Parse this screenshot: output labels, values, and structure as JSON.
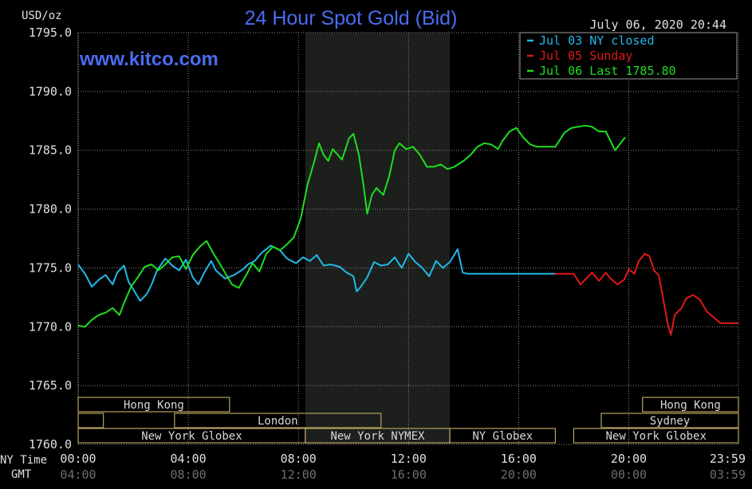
{
  "header": {
    "unit": "USD/oz",
    "title": "24 Hour Spot Gold (Bid)",
    "timestamp": "July 06, 2020 20:44",
    "watermark": "www.kitco.com"
  },
  "chart_data": {
    "type": "line",
    "title": "24 Hour Spot Gold (Bid)",
    "ylabel": "USD/oz",
    "ylim": [
      1760,
      1795
    ],
    "xlim": [
      0,
      1439
    ],
    "grid": true,
    "legend_position": "top-right",
    "y_ticks": [
      {
        "value": 1795,
        "label": "1795.0"
      },
      {
        "value": 1790,
        "label": "1790.0"
      },
      {
        "value": 1785,
        "label": "1785.0"
      },
      {
        "value": 1780,
        "label": "1780.0"
      },
      {
        "value": 1775,
        "label": "1775.0"
      },
      {
        "value": 1770,
        "label": "1770.0"
      },
      {
        "value": 1765,
        "label": "1765.0"
      },
      {
        "value": 1760,
        "label": "1760.0"
      }
    ],
    "x_axis_labels": {
      "ny": "NY Time",
      "gmt": "GMT"
    },
    "x_ticks": [
      {
        "x": 0,
        "ny": "00:00",
        "gmt": "04:00"
      },
      {
        "x": 240,
        "ny": "04:00",
        "gmt": "08:00"
      },
      {
        "x": 480,
        "ny": "08:00",
        "gmt": "12:00"
      },
      {
        "x": 720,
        "ny": "12:00",
        "gmt": "16:00"
      },
      {
        "x": 960,
        "ny": "16:00",
        "gmt": "20:00"
      },
      {
        "x": 1200,
        "ny": "20:00",
        "gmt": "00:00"
      },
      {
        "x": 1439,
        "ny": "23:59",
        "gmt": "03:59"
      }
    ],
    "shaded_range": [
      495,
      810
    ],
    "sessions": [
      {
        "label": "Hong Kong",
        "start": 0,
        "end": 330,
        "row": 0
      },
      {
        "label": "",
        "start": 0,
        "end": 55,
        "row": 1
      },
      {
        "label": "London",
        "start": 210,
        "end": 660,
        "row": 1
      },
      {
        "label": "New York Globex",
        "start": 0,
        "end": 495,
        "row": 2
      },
      {
        "label": "New York NYMEX",
        "start": 495,
        "end": 810,
        "row": 2
      },
      {
        "label": "NY Globex",
        "start": 810,
        "end": 1040,
        "row": 2
      },
      {
        "label": "Hong Kong",
        "start": 1230,
        "end": 1439,
        "row": 0
      },
      {
        "label": "Sydney",
        "start": 1140,
        "end": 1439,
        "row": 1
      },
      {
        "label": "New York Globex",
        "start": 1080,
        "end": 1439,
        "row": 2
      }
    ],
    "series": [
      {
        "name": "Jul 03 NY closed",
        "color": "#22b8e8",
        "points": [
          [
            0,
            1775.3
          ],
          [
            15,
            1774.5
          ],
          [
            30,
            1773.4
          ],
          [
            45,
            1774.0
          ],
          [
            60,
            1774.4
          ],
          [
            75,
            1773.6
          ],
          [
            85,
            1774.6
          ],
          [
            100,
            1775.2
          ],
          [
            110,
            1773.8
          ],
          [
            120,
            1773.2
          ],
          [
            135,
            1772.2
          ],
          [
            150,
            1772.8
          ],
          [
            160,
            1773.6
          ],
          [
            172,
            1774.8
          ],
          [
            190,
            1775.8
          ],
          [
            205,
            1775.2
          ],
          [
            220,
            1774.8
          ],
          [
            235,
            1775.7
          ],
          [
            250,
            1774.2
          ],
          [
            262,
            1773.6
          ],
          [
            275,
            1774.6
          ],
          [
            290,
            1775.6
          ],
          [
            300,
            1774.8
          ],
          [
            320,
            1774.1
          ],
          [
            340,
            1774.4
          ],
          [
            360,
            1774.9
          ],
          [
            370,
            1775.3
          ],
          [
            385,
            1775.6
          ],
          [
            400,
            1776.3
          ],
          [
            420,
            1776.9
          ],
          [
            440,
            1776.5
          ],
          [
            455,
            1775.8
          ],
          [
            475,
            1775.4
          ],
          [
            490,
            1775.9
          ],
          [
            505,
            1775.6
          ],
          [
            520,
            1776.1
          ],
          [
            535,
            1775.2
          ],
          [
            550,
            1775.3
          ],
          [
            570,
            1775.1
          ],
          [
            585,
            1774.6
          ],
          [
            600,
            1774.3
          ],
          [
            607,
            1773.0
          ],
          [
            616,
            1773.4
          ],
          [
            630,
            1774.2
          ],
          [
            645,
            1775.5
          ],
          [
            660,
            1775.2
          ],
          [
            675,
            1775.3
          ],
          [
            690,
            1775.9
          ],
          [
            705,
            1775.0
          ],
          [
            720,
            1776.2
          ],
          [
            735,
            1775.5
          ],
          [
            750,
            1775.0
          ],
          [
            765,
            1774.3
          ],
          [
            780,
            1775.6
          ],
          [
            795,
            1775.0
          ],
          [
            810,
            1775.5
          ],
          [
            827,
            1776.6
          ],
          [
            838,
            1774.6
          ],
          [
            850,
            1774.5
          ],
          [
            1040,
            1774.5
          ]
        ]
      },
      {
        "name": "Jul 05 Sunday",
        "color": "#e01818",
        "points": [
          [
            1040,
            1774.5
          ],
          [
            1080,
            1774.5
          ],
          [
            1095,
            1773.6
          ],
          [
            1110,
            1774.2
          ],
          [
            1120,
            1774.6
          ],
          [
            1135,
            1773.9
          ],
          [
            1150,
            1774.6
          ],
          [
            1160,
            1774.1
          ],
          [
            1175,
            1773.6
          ],
          [
            1190,
            1774.0
          ],
          [
            1200,
            1774.9
          ],
          [
            1212,
            1774.5
          ],
          [
            1222,
            1775.6
          ],
          [
            1235,
            1776.2
          ],
          [
            1245,
            1776.0
          ],
          [
            1255,
            1774.8
          ],
          [
            1265,
            1774.4
          ],
          [
            1275,
            1772.4
          ],
          [
            1285,
            1770.2
          ],
          [
            1292,
            1769.3
          ],
          [
            1300,
            1771.0
          ],
          [
            1315,
            1771.6
          ],
          [
            1325,
            1772.4
          ],
          [
            1340,
            1772.7
          ],
          [
            1355,
            1772.3
          ],
          [
            1370,
            1771.3
          ],
          [
            1385,
            1770.8
          ],
          [
            1400,
            1770.3
          ],
          [
            1439,
            1770.3
          ]
        ]
      },
      {
        "name": "Jul 06 Last 1785.80",
        "color": "#1ede1e",
        "points": [
          [
            0,
            1770.1
          ],
          [
            15,
            1770.0
          ],
          [
            30,
            1770.6
          ],
          [
            45,
            1771.0
          ],
          [
            60,
            1771.2
          ],
          [
            75,
            1771.6
          ],
          [
            90,
            1771.0
          ],
          [
            100,
            1772.0
          ],
          [
            115,
            1773.4
          ],
          [
            130,
            1774.2
          ],
          [
            145,
            1775.1
          ],
          [
            160,
            1775.3
          ],
          [
            175,
            1774.8
          ],
          [
            190,
            1775.3
          ],
          [
            205,
            1775.9
          ],
          [
            220,
            1776.0
          ],
          [
            235,
            1774.9
          ],
          [
            250,
            1776.1
          ],
          [
            265,
            1776.8
          ],
          [
            280,
            1777.3
          ],
          [
            295,
            1776.2
          ],
          [
            305,
            1775.6
          ],
          [
            320,
            1774.6
          ],
          [
            335,
            1773.6
          ],
          [
            350,
            1773.3
          ],
          [
            365,
            1774.3
          ],
          [
            380,
            1775.4
          ],
          [
            395,
            1774.7
          ],
          [
            410,
            1776.2
          ],
          [
            425,
            1776.8
          ],
          [
            440,
            1776.5
          ],
          [
            455,
            1777.0
          ],
          [
            470,
            1777.6
          ],
          [
            485,
            1779.2
          ],
          [
            500,
            1782.1
          ],
          [
            515,
            1784.1
          ],
          [
            525,
            1785.6
          ],
          [
            535,
            1784.6
          ],
          [
            545,
            1784.1
          ],
          [
            555,
            1785.1
          ],
          [
            575,
            1784.2
          ],
          [
            590,
            1786.0
          ],
          [
            600,
            1786.4
          ],
          [
            612,
            1784.6
          ],
          [
            622,
            1782.0
          ],
          [
            630,
            1779.6
          ],
          [
            640,
            1781.2
          ],
          [
            650,
            1781.8
          ],
          [
            665,
            1781.2
          ],
          [
            678,
            1782.8
          ],
          [
            690,
            1785.0
          ],
          [
            700,
            1785.6
          ],
          [
            715,
            1785.1
          ],
          [
            730,
            1785.3
          ],
          [
            745,
            1784.6
          ],
          [
            760,
            1783.6
          ],
          [
            775,
            1783.6
          ],
          [
            790,
            1783.8
          ],
          [
            805,
            1783.4
          ],
          [
            820,
            1783.6
          ],
          [
            840,
            1784.1
          ],
          [
            855,
            1784.6
          ],
          [
            870,
            1785.3
          ],
          [
            885,
            1785.6
          ],
          [
            900,
            1785.5
          ],
          [
            915,
            1785.1
          ],
          [
            925,
            1785.8
          ],
          [
            940,
            1786.6
          ],
          [
            955,
            1786.9
          ],
          [
            970,
            1786.1
          ],
          [
            985,
            1785.5
          ],
          [
            1000,
            1785.3
          ],
          [
            1040,
            1785.3
          ],
          [
            1060,
            1786.5
          ],
          [
            1075,
            1786.9
          ],
          [
            1090,
            1787.0
          ],
          [
            1105,
            1787.1
          ],
          [
            1120,
            1787.0
          ],
          [
            1135,
            1786.6
          ],
          [
            1150,
            1786.6
          ],
          [
            1160,
            1785.8
          ],
          [
            1170,
            1785.0
          ],
          [
            1180,
            1785.5
          ],
          [
            1192,
            1786.1
          ]
        ]
      }
    ]
  }
}
